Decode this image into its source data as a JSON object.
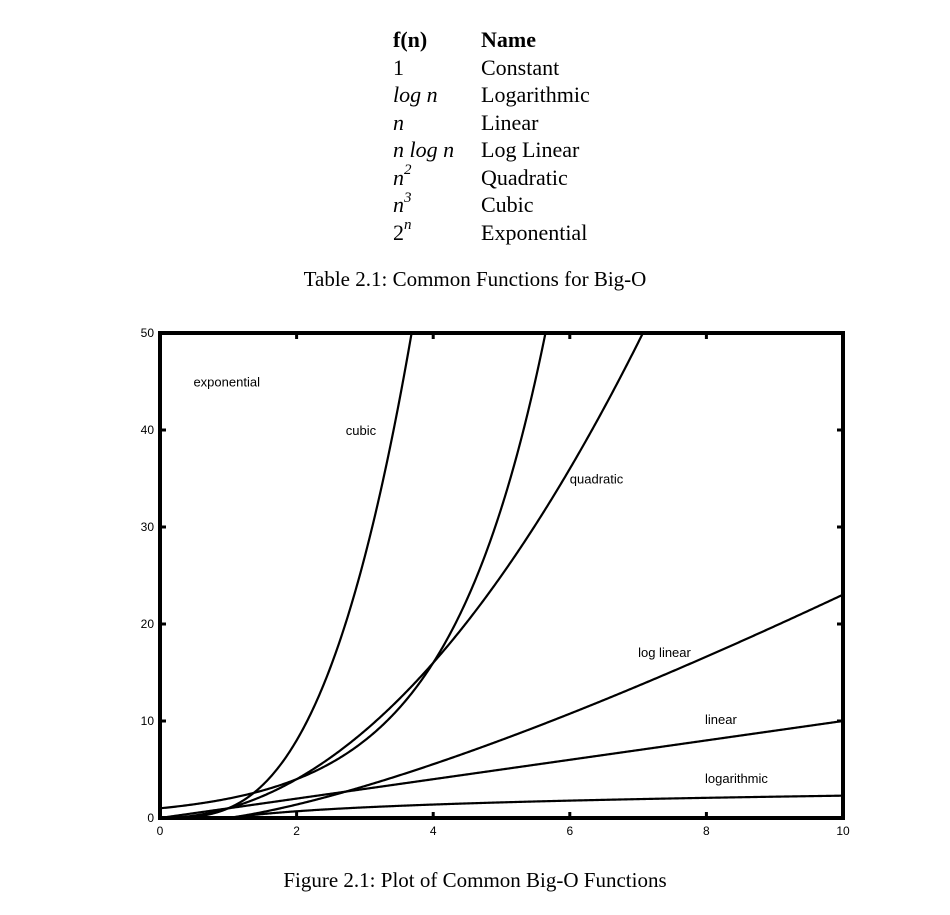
{
  "table": {
    "headers": [
      "f(n)",
      "Name"
    ],
    "rows": [
      {
        "fn": "1",
        "base": "1",
        "sup": "",
        "name": "Constant"
      },
      {
        "fn": "log n",
        "base": "log n",
        "sup": "",
        "name": "Logarithmic"
      },
      {
        "fn": "n",
        "base": "n",
        "sup": "",
        "name": "Linear"
      },
      {
        "fn": "n log n",
        "base": "n log n",
        "sup": "",
        "name": "Log Linear"
      },
      {
        "fn": "n2",
        "base": "n",
        "sup": "2",
        "name": "Quadratic"
      },
      {
        "fn": "n3",
        "base": "n",
        "sup": "3",
        "name": "Cubic"
      },
      {
        "fn": "2n",
        "base": "2",
        "sup": "n",
        "name": "Exponential"
      }
    ],
    "caption": "Table 2.1: Common Functions for Big-O"
  },
  "chart_data": {
    "type": "line",
    "title": "",
    "xlabel": "",
    "ylabel": "",
    "xlim": [
      0,
      10
    ],
    "ylim": [
      0,
      50
    ],
    "x_ticks": [
      0,
      2,
      4,
      6,
      8,
      10
    ],
    "y_ticks": [
      0,
      10,
      20,
      30,
      40,
      50
    ],
    "grid": false,
    "legend": "none",
    "series": [
      {
        "name": "exponential",
        "function": "2^n",
        "x": [
          0,
          0.5,
          1,
          1.5,
          2,
          3,
          4,
          5,
          5.64
        ],
        "y": [
          1,
          1.41,
          2,
          2.83,
          4,
          8,
          16,
          32,
          50
        ]
      },
      {
        "name": "cubic",
        "function": "n^3",
        "x": [
          0,
          1,
          2,
          3,
          3.68
        ],
        "y": [
          0,
          1,
          8,
          27,
          50
        ]
      },
      {
        "name": "quadratic",
        "function": "n^2",
        "x": [
          0,
          1,
          2,
          3,
          4,
          5,
          6,
          7.07
        ],
        "y": [
          0,
          1,
          4,
          9,
          16,
          25,
          36,
          50
        ]
      },
      {
        "name": "log linear",
        "function": "n log n",
        "x": [
          0,
          1,
          2,
          4,
          6,
          8,
          10
        ],
        "y": [
          0,
          0,
          1.39,
          5.55,
          10.75,
          16.64,
          23.03
        ]
      },
      {
        "name": "linear",
        "function": "n",
        "x": [
          0,
          10
        ],
        "y": [
          0,
          10
        ]
      },
      {
        "name": "logarithmic",
        "function": "log n",
        "x": [
          1,
          2,
          4,
          6,
          8,
          10
        ],
        "y": [
          0,
          0.69,
          1.39,
          1.79,
          2.08,
          2.3
        ]
      }
    ],
    "caption": "Figure 2.1: Plot of Common Big-O Functions"
  }
}
